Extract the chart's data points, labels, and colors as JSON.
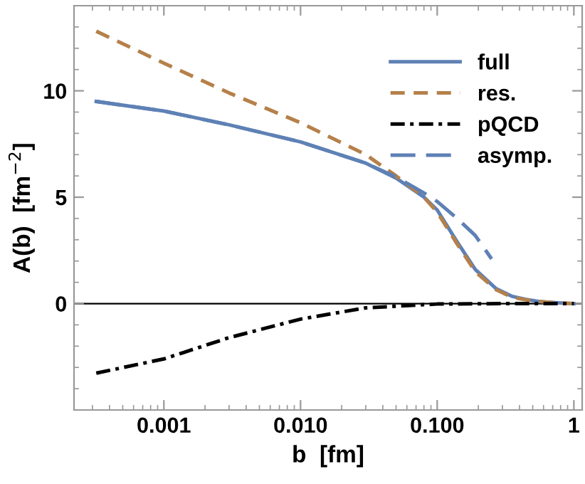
{
  "chart_data": {
    "type": "line",
    "xlabel": "b  [fm]",
    "ylabel": "A(b)  [fm$^{−2}$]",
    "log": "x",
    "xlim": [
      0.00022,
      1.15
    ],
    "ylim": [
      -5,
      14
    ],
    "xticks": [
      0.001,
      {
        "value": 0.01,
        "label": "0.010"
      },
      {
        "value": 0.1,
        "label": "0.100"
      },
      1
    ],
    "yticks": [
      0,
      5,
      10
    ],
    "grid": false,
    "legend": "top right",
    "marker": "none",
    "ref_lines": [
      {
        "axis": "y",
        "value": 0,
        "color": "#000000"
      }
    ],
    "series": [
      {
        "name": "full",
        "color": "#5e81b5",
        "line_style": "solid",
        "x": [
          0.00032,
          0.001,
          0.003,
          0.01,
          0.03,
          0.05,
          0.08,
          0.1,
          0.14,
          0.19,
          0.27,
          0.35,
          0.44,
          0.55,
          0.7,
          0.85,
          1.0
        ],
        "values": [
          9.5,
          9.05,
          8.4,
          7.6,
          6.6,
          5.9,
          5.0,
          4.4,
          2.9,
          1.6,
          0.7,
          0.35,
          0.2,
          0.1,
          0.05,
          0.02,
          0.0
        ]
      },
      {
        "name": "res.",
        "color": "#b5804a",
        "line_style": "dashed",
        "x": [
          0.00032,
          0.001,
          0.003,
          0.01,
          0.03,
          0.05,
          0.08,
          0.1,
          0.14,
          0.19,
          0.27,
          0.35,
          0.44,
          0.55,
          0.7,
          0.85,
          1.0
        ],
        "values": [
          12.8,
          11.3,
          9.9,
          8.5,
          7.0,
          6.0,
          5.0,
          4.3,
          2.8,
          1.5,
          0.65,
          0.3,
          0.18,
          0.1,
          0.05,
          0.02,
          0.0
        ]
      },
      {
        "name": "pQCD",
        "color": "#000000",
        "line_style": "dashdot",
        "x": [
          0.00032,
          0.001,
          0.003,
          0.01,
          0.03,
          0.1,
          0.3,
          1.0
        ],
        "values": [
          -3.27,
          -2.6,
          -1.6,
          -0.73,
          -0.2,
          -0.02,
          0.0,
          0.0
        ]
      },
      {
        "name": "asymp.",
        "color": "#5e81b5",
        "line_style": "longdash",
        "x": [
          0.00032,
          0.001,
          0.003,
          0.01,
          0.03,
          0.05,
          0.08,
          0.1,
          0.14,
          0.19,
          0.25
        ],
        "values": [
          9.5,
          9.05,
          8.4,
          7.6,
          6.6,
          5.95,
          5.2,
          4.8,
          4.0,
          3.2,
          2.1
        ]
      }
    ]
  }
}
